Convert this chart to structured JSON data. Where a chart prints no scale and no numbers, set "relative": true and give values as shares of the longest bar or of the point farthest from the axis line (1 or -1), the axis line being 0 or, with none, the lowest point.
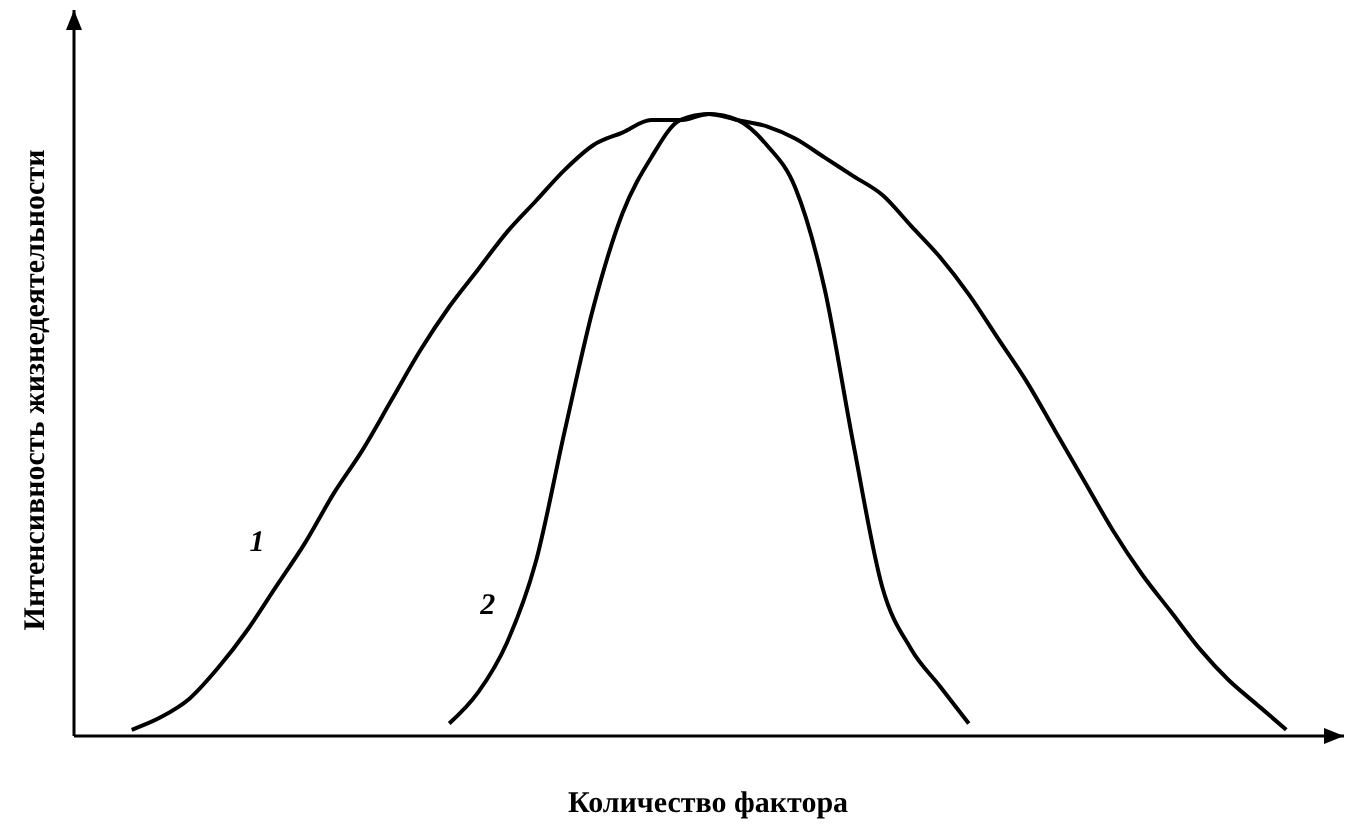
{
  "chart_data": {
    "type": "line",
    "relative": true,
    "xlabel": "Количество фактора",
    "ylabel": "Интенсивность жизнедеятельности",
    "marker": "none",
    "categories": [
      null,
      null,
      null,
      null,
      null,
      null,
      null,
      null,
      null,
      null,
      null,
      null,
      null,
      null,
      null,
      null,
      null,
      null,
      null,
      null,
      null,
      null,
      null,
      null,
      null,
      null,
      null,
      null,
      null,
      null,
      null,
      null,
      null,
      null,
      null,
      null,
      null,
      null,
      null,
      null,
      null,
      null,
      null,
      null,
      null
    ],
    "series": [
      {
        "name": "1",
        "color": "#000000",
        "values": [
          null,
          null,
          0.01,
          0.03,
          0.06,
          0.11,
          0.17,
          0.24,
          0.31,
          0.39,
          0.46,
          0.54,
          0.62,
          0.69,
          0.75,
          0.81,
          0.86,
          0.91,
          0.95,
          0.97,
          0.99,
          0.99,
          1,
          0.99,
          0.98,
          0.96,
          0.93,
          0.9,
          0.87,
          0.82,
          0.77,
          0.71,
          0.64,
          0.57,
          0.49,
          0.41,
          0.33,
          0.26,
          0.2,
          0.14,
          0.09,
          0.05,
          0.01,
          null,
          null
        ]
      },
      {
        "name": "2",
        "color": "#000000",
        "values": [
          null,
          null,
          null,
          null,
          null,
          null,
          null,
          null,
          null,
          null,
          null,
          null,
          null,
          0.02,
          0.07,
          0.15,
          0.28,
          0.49,
          0.69,
          0.84,
          0.93,
          0.99,
          1,
          0.99,
          0.95,
          0.88,
          0.72,
          0.47,
          0.24,
          0.14,
          0.08,
          0.02,
          null,
          null,
          null,
          null,
          null,
          null,
          null,
          null,
          null,
          null,
          null,
          null,
          null
        ]
      }
    ]
  }
}
